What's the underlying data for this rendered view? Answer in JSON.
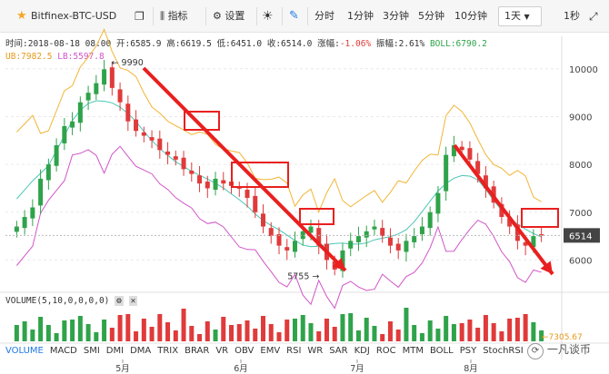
{
  "toolbar": {
    "symbol": "Bitfinex-BTC-USD",
    "indicators": "指标",
    "settings": "设置",
    "intervals": [
      "分时",
      "1分钟",
      "3分钟",
      "5分钟",
      "10分钟"
    ],
    "selected_interval": "1天",
    "refresh": "1秒"
  },
  "info": {
    "time": "时间:2018-08-18 08:00",
    "open": "开:6585.9",
    "high": "高:6619.5",
    "low": "低:6451.0",
    "close": "收:6514.0",
    "change_label": "涨幅:",
    "change": "-1.06%",
    "amplitude": "振幅:2.61%",
    "boll": "BOLL:6790.2",
    "ub": "UB:7982.5",
    "lb": "LB:5597.8"
  },
  "chart_data": {
    "type": "candlestick",
    "y_ticks": [
      "10000",
      "9000",
      "8000",
      "7000",
      "6000"
    ],
    "x_ticks": [
      "5月",
      "6月",
      "7月",
      "8月"
    ],
    "high_label": "9990",
    "low_label": "5755",
    "last_price": "6514",
    "volume_last": "7305.67",
    "ohlc_close_trend": [
      6700,
      6900,
      7100,
      7700,
      8000,
      8400,
      8800,
      8900,
      9300,
      9500,
      9700,
      9990,
      9600,
      9300,
      8900,
      8700,
      8600,
      8500,
      8300,
      8200,
      8100,
      7900,
      7800,
      7600,
      7500,
      7700,
      7600,
      7550,
      7500,
      7300,
      7000,
      6700,
      6500,
      6300,
      6200,
      6400,
      6600,
      6700,
      6300,
      6000,
      5800,
      6200,
      6400,
      6500,
      6600,
      6700,
      6500,
      6300,
      6200,
      6400,
      6500,
      6700,
      7000,
      7400,
      8200,
      8400,
      8300,
      8100,
      7800,
      7500,
      7200,
      6900,
      6700,
      6400,
      6300,
      6500,
      6514
    ],
    "volume_title": "VOLUME(5,10,0,0,0,0)"
  },
  "indicator_tabs": [
    "VOLUME",
    "MACD",
    "SMI",
    "DMI",
    "DMA",
    "TRIX",
    "BRAR",
    "VR",
    "OBV",
    "EMV",
    "RSI",
    "WR",
    "SAR",
    "KDJ",
    "ROC",
    "MTM",
    "BOLL",
    "PSY",
    "StochRSI"
  ],
  "watermark": "一凡谈币",
  "colors": {
    "up": "#2fa34a",
    "down": "#e03a3a",
    "ub": "#f2b535",
    "lb": "#d154c8",
    "boll": "#49c6b5",
    "arrow": "#e8201f"
  }
}
